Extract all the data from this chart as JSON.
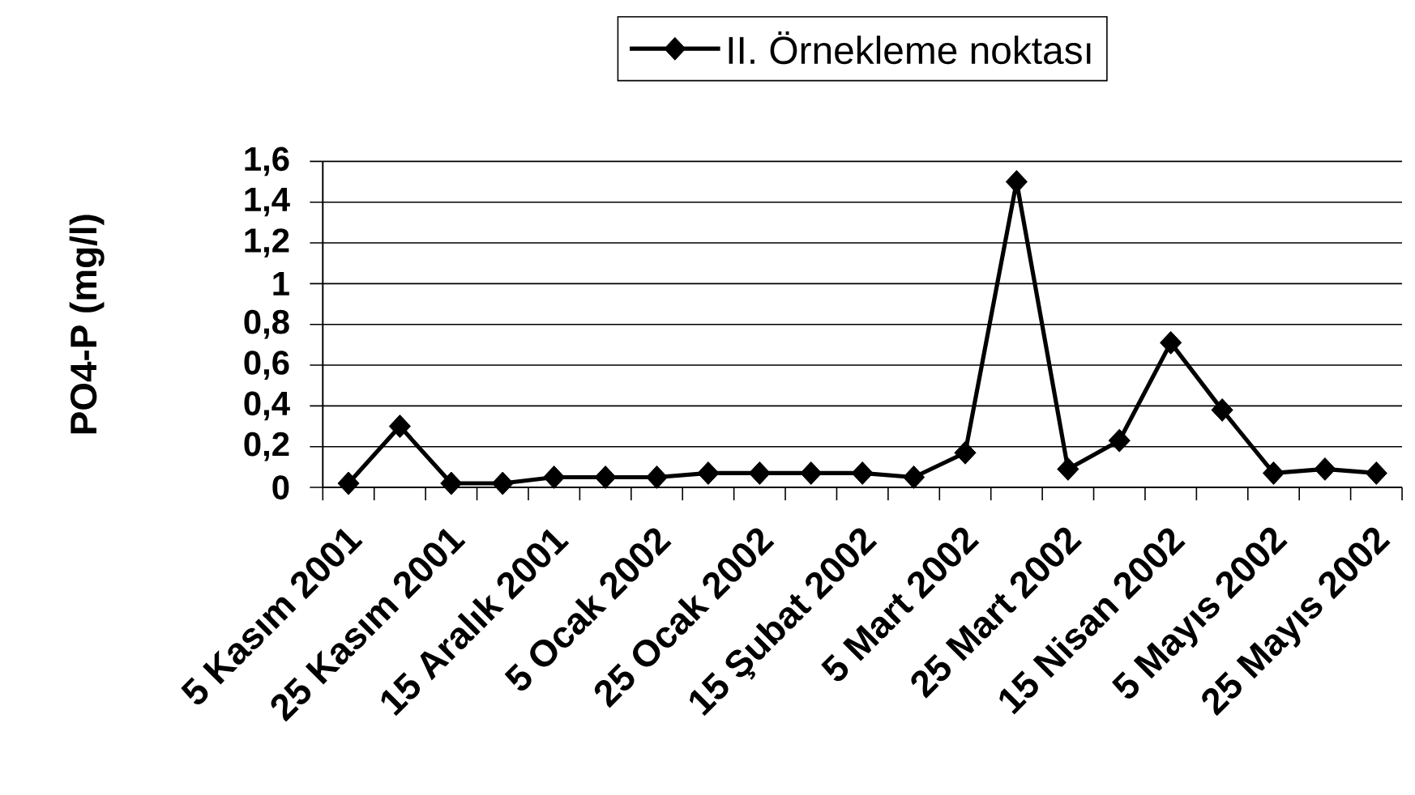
{
  "chart_data": {
    "type": "line",
    "categories": [
      "5 Kasım 2001",
      null,
      "25 Kasım 2001",
      null,
      "15 Aralık 2001",
      null,
      "5 Ocak 2002",
      null,
      "25 Ocak 2002",
      null,
      "15 Şubat 2002",
      null,
      "5 Mart 2002",
      null,
      "25 Mart 2002",
      null,
      "15 Nisan 2002",
      null,
      "5 Mayıs 2002",
      null,
      "25 Mayıs 2002"
    ],
    "series": [
      {
        "name": "II. Örnekleme noktası",
        "color": "#000000",
        "values": [
          0.02,
          0.3,
          0.02,
          0.02,
          0.05,
          0.05,
          0.05,
          0.07,
          0.07,
          0.07,
          0.07,
          0.05,
          0.17,
          1.5,
          0.09,
          0.23,
          0.71,
          0.38,
          0.07,
          0.09,
          0.07
        ]
      }
    ],
    "ylabel": "PO4-P (mg/l)",
    "ylim": [
      0,
      1.6
    ],
    "yticks": [
      0,
      {
        "value": 0.2,
        "label": "0,2"
      },
      {
        "value": 0.4,
        "label": "0,4"
      },
      {
        "value": 0.6,
        "label": "0,6"
      },
      {
        "value": 0.8,
        "label": "0,8"
      },
      1,
      {
        "value": 1.2,
        "label": "1,2"
      },
      {
        "value": 1.4,
        "label": "1,4"
      },
      {
        "value": 1.6,
        "label": "1,6"
      }
    ],
    "grid": "y",
    "legend": "top",
    "marker": "diamond",
    "line_style": "solid"
  }
}
